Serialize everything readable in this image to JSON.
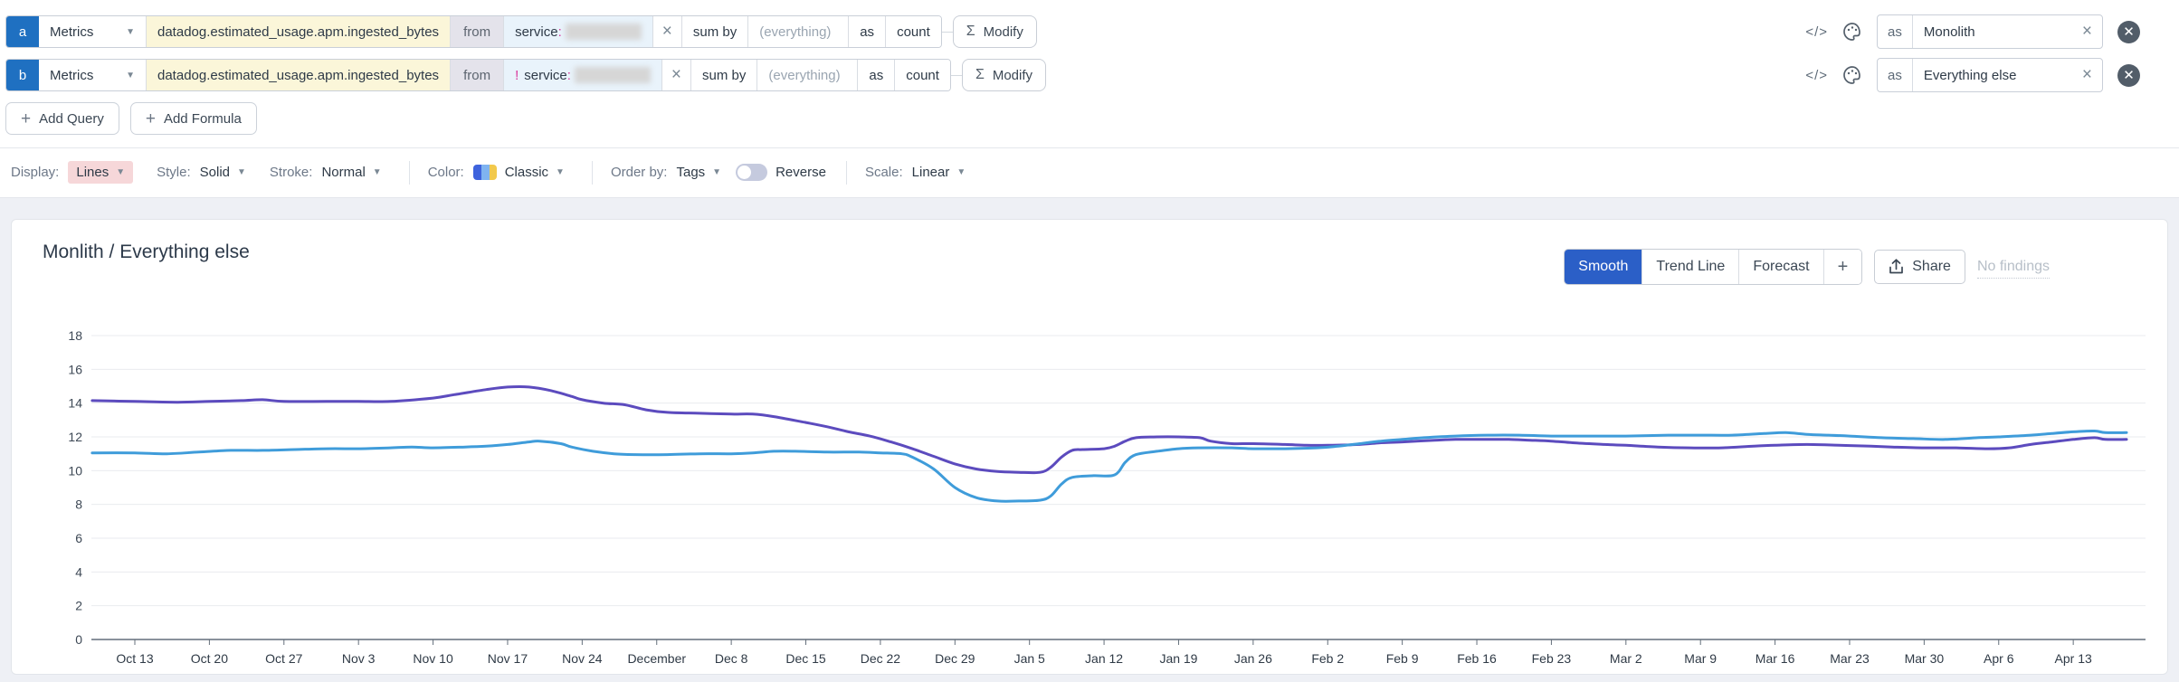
{
  "colors": {
    "badge_blue": "#1f70c1",
    "metric_field_bg": "#fbf6d9",
    "filter_bg": "#e9f3fb",
    "active_tab_bg": "#2b5fc7",
    "series_purple": "#5c4bbe",
    "series_blue": "#3f9cda",
    "changed_chip_bg": "#f6d7d9"
  },
  "query_rows": [
    {
      "id": "a",
      "source": "Metrics",
      "metric": "datadog.estimated_usage.apm.ingested_bytes",
      "from_label": "from",
      "filter_negation": "",
      "filter_key": "service",
      "filter_colon": ":",
      "sum_by_label": "sum by",
      "sum_by_value": "(everything)",
      "as_label": "as",
      "rollup": "count",
      "modify_label": "Modify",
      "alias_label": "as",
      "alias": "Monolith"
    },
    {
      "id": "b",
      "source": "Metrics",
      "metric": "datadog.estimated_usage.apm.ingested_bytes",
      "from_label": "from",
      "filter_negation": "!",
      "filter_key": "service",
      "filter_colon": ":",
      "sum_by_label": "sum by",
      "sum_by_value": "(everything)",
      "as_label": "as",
      "rollup": "count",
      "modify_label": "Modify",
      "alias_label": "as",
      "alias": "Everything else"
    }
  ],
  "actions": {
    "add_query": "Add Query",
    "add_formula": "Add Formula"
  },
  "display_bar": {
    "display_label": "Display:",
    "display_value": "Lines",
    "style_label": "Style:",
    "style_value": "Solid",
    "stroke_label": "Stroke:",
    "stroke_value": "Normal",
    "color_label": "Color:",
    "color_value": "Classic",
    "order_by_label": "Order by:",
    "order_by_value": "Tags",
    "reverse_label": "Reverse",
    "reverse_on": false,
    "scale_label": "Scale:",
    "scale_value": "Linear"
  },
  "graph": {
    "title": "Monlith / Everything else",
    "tabs": [
      "Smooth",
      "Trend Line",
      "Forecast"
    ],
    "active_tab": "Smooth",
    "plus_tab": "+",
    "share_label": "Share",
    "no_findings_label": "No findings"
  },
  "chart_data": {
    "type": "line",
    "title": "Monlith / Everything else",
    "grid": "horizontal",
    "legend": "none",
    "ylim": [
      0,
      18
    ],
    "y_ticks": [
      0,
      2,
      4,
      6,
      8,
      10,
      12,
      14,
      16,
      18
    ],
    "x_unit": "days (0 = Oct 10)",
    "x_domain": [
      -1,
      190
    ],
    "x_ticks": [
      {
        "day": 3,
        "label": "Oct 13"
      },
      {
        "day": 10,
        "label": "Oct 20"
      },
      {
        "day": 17,
        "label": "Oct 27"
      },
      {
        "day": 24,
        "label": "Nov 3"
      },
      {
        "day": 31,
        "label": "Nov 10"
      },
      {
        "day": 38,
        "label": "Nov 17"
      },
      {
        "day": 45,
        "label": "Nov 24"
      },
      {
        "day": 52,
        "label": "December"
      },
      {
        "day": 59,
        "label": "Dec 8"
      },
      {
        "day": 66,
        "label": "Dec 15"
      },
      {
        "day": 73,
        "label": "Dec 22"
      },
      {
        "day": 80,
        "label": "Dec 29"
      },
      {
        "day": 87,
        "label": "Jan 5"
      },
      {
        "day": 94,
        "label": "Jan 12"
      },
      {
        "day": 101,
        "label": "Jan 19"
      },
      {
        "day": 108,
        "label": "Jan 26"
      },
      {
        "day": 115,
        "label": "Feb 2"
      },
      {
        "day": 122,
        "label": "Feb 9"
      },
      {
        "day": 129,
        "label": "Feb 16"
      },
      {
        "day": 136,
        "label": "Feb 23"
      },
      {
        "day": 143,
        "label": "Mar 2"
      },
      {
        "day": 150,
        "label": "Mar 9"
      },
      {
        "day": 157,
        "label": "Mar 16"
      },
      {
        "day": 164,
        "label": "Mar 23"
      },
      {
        "day": 171,
        "label": "Mar 30"
      },
      {
        "day": 178,
        "label": "Apr 6"
      },
      {
        "day": 185,
        "label": "Apr 13"
      }
    ],
    "series": [
      {
        "name": "Monolith",
        "color": "#5c4bbe",
        "points": [
          [
            -1,
            14.15
          ],
          [
            3,
            14.1
          ],
          [
            7,
            14.05
          ],
          [
            10,
            14.1
          ],
          [
            13,
            14.15
          ],
          [
            15,
            14.2
          ],
          [
            17,
            14.1
          ],
          [
            21,
            14.1
          ],
          [
            24,
            14.1
          ],
          [
            27,
            14.1
          ],
          [
            31,
            14.3
          ],
          [
            33,
            14.5
          ],
          [
            36,
            14.8
          ],
          [
            38,
            14.95
          ],
          [
            40,
            14.95
          ],
          [
            42,
            14.75
          ],
          [
            44,
            14.4
          ],
          [
            45,
            14.2
          ],
          [
            47,
            14.0
          ],
          [
            49,
            13.9
          ],
          [
            51,
            13.6
          ],
          [
            53,
            13.45
          ],
          [
            56,
            13.4
          ],
          [
            59,
            13.35
          ],
          [
            61,
            13.35
          ],
          [
            63,
            13.2
          ],
          [
            66,
            12.85
          ],
          [
            68,
            12.6
          ],
          [
            70,
            12.3
          ],
          [
            72,
            12.05
          ],
          [
            74,
            11.7
          ],
          [
            76,
            11.3
          ],
          [
            78,
            10.85
          ],
          [
            80,
            10.4
          ],
          [
            82,
            10.1
          ],
          [
            84,
            9.95
          ],
          [
            86,
            9.9
          ],
          [
            88,
            9.9
          ],
          [
            89,
            10.2
          ],
          [
            90,
            10.8
          ],
          [
            91,
            11.2
          ],
          [
            92,
            11.25
          ],
          [
            94,
            11.3
          ],
          [
            95,
            11.45
          ],
          [
            96,
            11.75
          ],
          [
            97,
            11.95
          ],
          [
            99,
            12.0
          ],
          [
            101,
            12.0
          ],
          [
            103,
            11.95
          ],
          [
            104,
            11.75
          ],
          [
            106,
            11.6
          ],
          [
            108,
            11.6
          ],
          [
            111,
            11.55
          ],
          [
            113,
            11.5
          ],
          [
            115,
            11.5
          ],
          [
            118,
            11.55
          ],
          [
            120,
            11.65
          ],
          [
            122,
            11.7
          ],
          [
            125,
            11.8
          ],
          [
            127,
            11.85
          ],
          [
            130,
            11.85
          ],
          [
            132,
            11.85
          ],
          [
            134,
            11.8
          ],
          [
            136,
            11.75
          ],
          [
            138,
            11.65
          ],
          [
            141,
            11.55
          ],
          [
            143,
            11.5
          ],
          [
            146,
            11.4
          ],
          [
            149,
            11.35
          ],
          [
            152,
            11.35
          ],
          [
            155,
            11.45
          ],
          [
            157,
            11.5
          ],
          [
            160,
            11.55
          ],
          [
            163,
            11.5
          ],
          [
            166,
            11.45
          ],
          [
            168,
            11.4
          ],
          [
            171,
            11.35
          ],
          [
            174,
            11.35
          ],
          [
            177,
            11.3
          ],
          [
            179,
            11.35
          ],
          [
            181,
            11.55
          ],
          [
            183,
            11.7
          ],
          [
            185,
            11.85
          ],
          [
            187,
            11.95
          ],
          [
            188,
            11.85
          ],
          [
            190,
            11.85
          ]
        ]
      },
      {
        "name": "Everything else",
        "color": "#3f9cda",
        "points": [
          [
            -1,
            11.05
          ],
          [
            3,
            11.05
          ],
          [
            6,
            11.0
          ],
          [
            9,
            11.1
          ],
          [
            12,
            11.2
          ],
          [
            15,
            11.2
          ],
          [
            18,
            11.25
          ],
          [
            21,
            11.3
          ],
          [
            24,
            11.3
          ],
          [
            27,
            11.35
          ],
          [
            29,
            11.4
          ],
          [
            31,
            11.35
          ],
          [
            34,
            11.4
          ],
          [
            36,
            11.45
          ],
          [
            38,
            11.55
          ],
          [
            40,
            11.7
          ],
          [
            41,
            11.75
          ],
          [
            43,
            11.6
          ],
          [
            44,
            11.4
          ],
          [
            46,
            11.15
          ],
          [
            48,
            11.0
          ],
          [
            50,
            10.95
          ],
          [
            53,
            10.95
          ],
          [
            56,
            11.0
          ],
          [
            59,
            11.0
          ],
          [
            61,
            11.05
          ],
          [
            63,
            11.15
          ],
          [
            65,
            11.15
          ],
          [
            68,
            11.1
          ],
          [
            71,
            11.1
          ],
          [
            73,
            11.05
          ],
          [
            75,
            11.0
          ],
          [
            76,
            10.8
          ],
          [
            78,
            10.1
          ],
          [
            80,
            9.0
          ],
          [
            82,
            8.4
          ],
          [
            84,
            8.2
          ],
          [
            86,
            8.2
          ],
          [
            88,
            8.25
          ],
          [
            89,
            8.5
          ],
          [
            90,
            9.2
          ],
          [
            91,
            9.6
          ],
          [
            93,
            9.7
          ],
          [
            95,
            9.75
          ],
          [
            96,
            10.5
          ],
          [
            97,
            10.95
          ],
          [
            99,
            11.15
          ],
          [
            101,
            11.3
          ],
          [
            103,
            11.35
          ],
          [
            106,
            11.35
          ],
          [
            108,
            11.3
          ],
          [
            111,
            11.3
          ],
          [
            114,
            11.35
          ],
          [
            116,
            11.45
          ],
          [
            118,
            11.6
          ],
          [
            120,
            11.75
          ],
          [
            122,
            11.85
          ],
          [
            124,
            11.95
          ],
          [
            127,
            12.05
          ],
          [
            130,
            12.1
          ],
          [
            133,
            12.1
          ],
          [
            136,
            12.05
          ],
          [
            140,
            12.05
          ],
          [
            143,
            12.05
          ],
          [
            147,
            12.1
          ],
          [
            150,
            12.1
          ],
          [
            153,
            12.1
          ],
          [
            156,
            12.2
          ],
          [
            158,
            12.25
          ],
          [
            160,
            12.15
          ],
          [
            162,
            12.1
          ],
          [
            164,
            12.05
          ],
          [
            167,
            11.95
          ],
          [
            170,
            11.9
          ],
          [
            173,
            11.85
          ],
          [
            176,
            11.95
          ],
          [
            178,
            12.0
          ],
          [
            181,
            12.1
          ],
          [
            183,
            12.2
          ],
          [
            185,
            12.3
          ],
          [
            187,
            12.35
          ],
          [
            188,
            12.25
          ],
          [
            190,
            12.25
          ]
        ]
      }
    ]
  }
}
